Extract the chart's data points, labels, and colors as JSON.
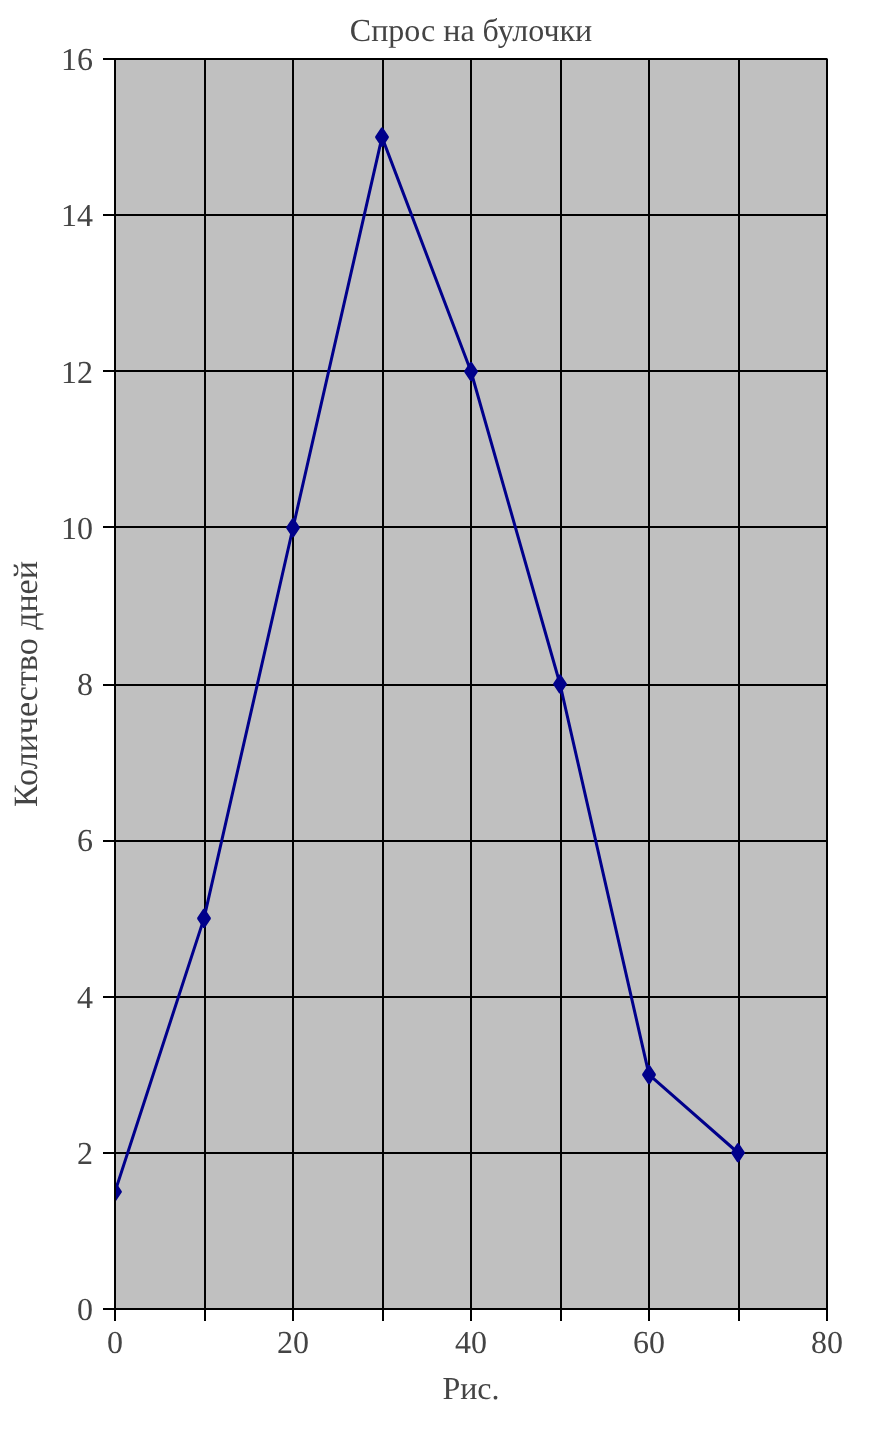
{
  "chart_data": {
    "type": "line",
    "title": "Спрос на булочки",
    "ylabel": "Количество дней",
    "annotations": [
      "Рис."
    ],
    "x": [
      0,
      10,
      20,
      30,
      40,
      50,
      60,
      70
    ],
    "series": [
      {
        "color": "#00008b",
        "values": [
          1.5,
          5,
          10,
          15,
          12,
          8,
          3,
          2
        ]
      }
    ],
    "xlim": [
      0,
      80
    ],
    "ylim": [
      0,
      16
    ],
    "xticks": [
      0,
      {
        "value": 10,
        "label": null
      },
      20,
      {
        "value": 30,
        "label": null
      },
      40,
      {
        "value": 50,
        "label": null
      },
      60,
      {
        "value": 70,
        "label": null
      },
      80
    ],
    "yticks": [
      0,
      2,
      4,
      6,
      8,
      10,
      12,
      14,
      16
    ],
    "grid": true,
    "marker": "diamond",
    "line_style": "solid"
  }
}
